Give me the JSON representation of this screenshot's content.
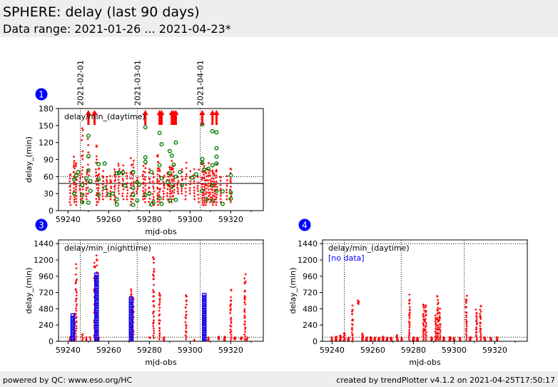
{
  "header": {
    "title": "SPHERE: delay (last 90 days)",
    "subtitle": "Data range: 2021-01-26 ... 2021-04-23*"
  },
  "footer": {
    "left": "powered by QC: www.eso.org/HC",
    "right": "created by trendPlotter v4.1.2 on 2021-04-25T17:50:17"
  },
  "colors": {
    "red": "#ff0000",
    "green": "#008000",
    "blue": "#0000ff",
    "badge": "#0000ff"
  },
  "chart_data": [
    {
      "id": "1",
      "type": "scatter",
      "title": "delay/min_(daytime)",
      "xlabel": "mjd-obs",
      "ylabel": "delay_(min)",
      "xlim": [
        59235.3,
        59336
      ],
      "ylim": [
        0,
        180
      ],
      "xticks": [
        59240,
        59260,
        59280,
        59300,
        59320
      ],
      "yticks": [
        0,
        30,
        60,
        90,
        120,
        150,
        180
      ],
      "date_markers": [
        {
          "x": 59246,
          "label": "2021-02-01"
        },
        {
          "x": 59274,
          "label": "2021-03-01"
        },
        {
          "x": 59305,
          "label": "2021-04-01"
        }
      ],
      "hlines": [
        {
          "y": 60,
          "style": "dotted"
        },
        {
          "y": 48,
          "style": "solid"
        }
      ],
      "overflow_arrows_x": [
        59250,
        59253,
        59278,
        59285,
        59286,
        59291,
        59292,
        59293,
        59306,
        59311,
        59313
      ],
      "red_columns": [
        [
          59241,
          10,
          70,
          12
        ],
        [
          59243,
          15,
          100,
          20
        ],
        [
          59244,
          10,
          90,
          15
        ],
        [
          59246,
          20,
          70,
          10
        ],
        [
          59247,
          15,
          150,
          18
        ],
        [
          59249,
          20,
          70,
          10
        ],
        [
          59250,
          30,
          130,
          10
        ],
        [
          59254,
          10,
          125,
          20
        ],
        [
          59255,
          15,
          80,
          15
        ],
        [
          59257,
          20,
          70,
          10
        ],
        [
          59259,
          25,
          60,
          10
        ],
        [
          59261,
          20,
          65,
          10
        ],
        [
          59263,
          15,
          80,
          15
        ],
        [
          59265,
          30,
          85,
          12
        ],
        [
          59267,
          20,
          85,
          12
        ],
        [
          59269,
          20,
          70,
          10
        ],
        [
          59271,
          10,
          95,
          15
        ],
        [
          59272,
          20,
          90,
          12
        ],
        [
          59274,
          30,
          60,
          8
        ],
        [
          59277,
          20,
          80,
          12
        ],
        [
          59278,
          15,
          85,
          12
        ],
        [
          59280,
          10,
          75,
          12
        ],
        [
          59282,
          10,
          65,
          12
        ],
        [
          59284,
          10,
          110,
          18
        ],
        [
          59285,
          15,
          80,
          15
        ],
        [
          59287,
          20,
          65,
          10
        ],
        [
          59289,
          20,
          75,
          10
        ],
        [
          59290,
          15,
          85,
          15
        ],
        [
          59291,
          15,
          90,
          15
        ],
        [
          59292,
          20,
          85,
          12
        ],
        [
          59294,
          30,
          60,
          8
        ],
        [
          59296,
          30,
          75,
          10
        ],
        [
          59298,
          20,
          85,
          10
        ],
        [
          59300,
          30,
          70,
          8
        ],
        [
          59302,
          20,
          75,
          10
        ],
        [
          59304,
          15,
          75,
          10
        ],
        [
          59306,
          10,
          90,
          18
        ],
        [
          59307,
          10,
          85,
          18
        ],
        [
          59308,
          10,
          80,
          15
        ],
        [
          59309,
          20,
          85,
          12
        ],
        [
          59310,
          15,
          70,
          12
        ],
        [
          59311,
          10,
          75,
          15
        ],
        [
          59312,
          15,
          70,
          12
        ],
        [
          59313,
          10,
          85,
          15
        ],
        [
          59315,
          15,
          65,
          10
        ],
        [
          59318,
          20,
          65,
          8
        ],
        [
          59320,
          15,
          80,
          12
        ]
      ],
      "green_points": [
        [
          59243,
          55
        ],
        [
          59243,
          30
        ],
        [
          59244,
          62
        ],
        [
          59245,
          68
        ],
        [
          59247,
          45
        ],
        [
          59247,
          28
        ],
        [
          59247,
          15
        ],
        [
          59249,
          57
        ],
        [
          59250,
          132
        ],
        [
          59250,
          96
        ],
        [
          59250,
          71
        ],
        [
          59250,
          14
        ],
        [
          59251,
          52
        ],
        [
          59251,
          35
        ],
        [
          59255,
          82
        ],
        [
          59255,
          55
        ],
        [
          59255,
          28
        ],
        [
          59258,
          83
        ],
        [
          59258,
          40
        ],
        [
          59260,
          28
        ],
        [
          59262,
          30
        ],
        [
          59264,
          66
        ],
        [
          59264,
          20
        ],
        [
          59264,
          11
        ],
        [
          59265,
          67
        ],
        [
          59267,
          67
        ],
        [
          59268,
          44
        ],
        [
          59272,
          68
        ],
        [
          59272,
          40
        ],
        [
          59272,
          28
        ],
        [
          59272,
          10
        ],
        [
          59274,
          50
        ],
        [
          59274,
          18
        ],
        [
          59275,
          46
        ],
        [
          59278,
          147
        ],
        [
          59278,
          94
        ],
        [
          59278,
          86
        ],
        [
          59278,
          27
        ],
        [
          59280,
          30
        ],
        [
          59281,
          68
        ],
        [
          59281,
          11
        ],
        [
          59282,
          15
        ],
        [
          59285,
          137
        ],
        [
          59285,
          80
        ],
        [
          59285,
          22
        ],
        [
          59286,
          117
        ],
        [
          59286,
          57
        ],
        [
          59286,
          12
        ],
        [
          59289,
          50
        ],
        [
          59290,
          105
        ],
        [
          59290,
          66
        ],
        [
          59290,
          18
        ],
        [
          59291,
          97
        ],
        [
          59291,
          42
        ],
        [
          59292,
          81
        ],
        [
          59293,
          120
        ],
        [
          59293,
          60
        ],
        [
          59293,
          19
        ],
        [
          59295,
          68
        ],
        [
          59296,
          45
        ],
        [
          59301,
          58
        ],
        [
          59303,
          64
        ],
        [
          59306,
          152
        ],
        [
          59306,
          91
        ],
        [
          59306,
          84
        ],
        [
          59306,
          35
        ],
        [
          59307,
          72
        ],
        [
          59308,
          20
        ],
        [
          59309,
          74
        ],
        [
          59311,
          140
        ],
        [
          59311,
          80
        ],
        [
          59311,
          45
        ],
        [
          59311,
          18
        ],
        [
          59313,
          138
        ],
        [
          59313,
          110
        ],
        [
          59313,
          95
        ],
        [
          59313,
          83
        ],
        [
          59313,
          35
        ],
        [
          59316,
          12
        ],
        [
          59316,
          34
        ],
        [
          59320,
          62
        ],
        [
          59320,
          32
        ],
        [
          59320,
          21
        ]
      ],
      "blue_columns": []
    },
    {
      "id": "3",
      "type": "scatter",
      "title": "delay/min_(nighttime)",
      "xlabel": "mjd-obs",
      "ylabel": "delay_(min)",
      "xlim": [
        59235.3,
        59336
      ],
      "ylim": [
        0,
        1495
      ],
      "xticks": [
        59240,
        59260,
        59280,
        59300,
        59320
      ],
      "yticks": [
        0,
        240,
        480,
        720,
        960,
        1200,
        1440
      ],
      "date_markers": [
        {
          "x": 59246
        },
        {
          "x": 59274
        },
        {
          "x": 59305
        }
      ],
      "hlines": [
        {
          "y": 1440,
          "style": "dotted"
        },
        {
          "y": 60,
          "style": "dotted"
        }
      ],
      "overflow_arrows_x": [],
      "red_columns": [
        [
          59241,
          0,
          80,
          8
        ],
        [
          59243,
          0,
          450,
          25
        ],
        [
          59244,
          0,
          1150,
          30
        ],
        [
          59247,
          0,
          120,
          6
        ],
        [
          59249,
          0,
          60,
          4
        ],
        [
          59251,
          0,
          60,
          3
        ],
        [
          59253,
          0,
          1200,
          35
        ],
        [
          59254,
          0,
          1300,
          40
        ],
        [
          59255,
          0,
          60,
          8
        ],
        [
          59271,
          0,
          830,
          30
        ],
        [
          59272,
          0,
          700,
          20
        ],
        [
          59280,
          50,
          60,
          2
        ],
        [
          59282,
          50,
          1310,
          35
        ],
        [
          59285,
          30,
          810,
          25
        ],
        [
          59287,
          0,
          70,
          6
        ],
        [
          59298,
          30,
          760,
          22
        ],
        [
          59302,
          0,
          20,
          2
        ],
        [
          59307,
          0,
          720,
          25
        ],
        [
          59309,
          0,
          60,
          6
        ],
        [
          59314,
          30,
          70,
          6
        ],
        [
          59317,
          0,
          70,
          8
        ],
        [
          59320,
          0,
          790,
          25
        ],
        [
          59322,
          30,
          60,
          8
        ],
        [
          59325,
          30,
          60,
          8
        ],
        [
          59327,
          0,
          1050,
          30
        ],
        [
          59328,
          0,
          60,
          6
        ]
      ],
      "green_points": [],
      "blue_columns": [
        [
          59242.3,
          0,
          380,
          12
        ],
        [
          59254,
          0,
          980,
          28
        ],
        [
          59271,
          0,
          630,
          18
        ],
        [
          59307,
          0,
          680,
          20
        ]
      ]
    },
    {
      "id": "4",
      "type": "scatter",
      "title": "delay/min_(daytime)",
      "note": "[no data]",
      "xlabel": "mjd-obs",
      "ylabel": "delay_(min)",
      "xlim": [
        59235.3,
        59336
      ],
      "ylim": [
        0,
        1495
      ],
      "xticks": [
        59240,
        59260,
        59280,
        59300,
        59320
      ],
      "yticks": [
        0,
        240,
        480,
        720,
        960,
        1200,
        1440
      ],
      "date_markers": [
        {
          "x": 59246
        },
        {
          "x": 59274
        },
        {
          "x": 59305
        }
      ],
      "hlines": [
        {
          "y": 1440,
          "style": "dotted"
        },
        {
          "y": 60,
          "style": "dotted"
        }
      ],
      "overflow_arrows_x": [],
      "red_columns": [
        [
          59240,
          0,
          70,
          6
        ],
        [
          59242,
          0,
          80,
          10
        ],
        [
          59244,
          0,
          90,
          12
        ],
        [
          59246,
          0,
          140,
          10
        ],
        [
          59248,
          0,
          60,
          8
        ],
        [
          59250,
          0,
          550,
          20
        ],
        [
          59253,
          550,
          610,
          6
        ],
        [
          59255,
          0,
          120,
          12
        ],
        [
          59257,
          0,
          60,
          10
        ],
        [
          59259,
          0,
          70,
          10
        ],
        [
          59261,
          0,
          60,
          10
        ],
        [
          59263,
          0,
          60,
          10
        ],
        [
          59265,
          0,
          70,
          10
        ],
        [
          59267,
          0,
          60,
          10
        ],
        [
          59269,
          0,
          60,
          8
        ],
        [
          59272,
          0,
          90,
          10
        ],
        [
          59274,
          0,
          50,
          6
        ],
        [
          59278,
          0,
          700,
          25
        ],
        [
          59280,
          0,
          60,
          10
        ],
        [
          59282,
          0,
          60,
          10
        ],
        [
          59285,
          0,
          570,
          22
        ],
        [
          59286,
          0,
          610,
          22
        ],
        [
          59289,
          0,
          60,
          8
        ],
        [
          59291,
          0,
          400,
          18
        ],
        [
          59292,
          0,
          700,
          25
        ],
        [
          59293,
          0,
          490,
          18
        ],
        [
          59295,
          0,
          60,
          8
        ],
        [
          59298,
          0,
          70,
          10
        ],
        [
          59300,
          0,
          60,
          8
        ],
        [
          59303,
          0,
          60,
          8
        ],
        [
          59306,
          0,
          710,
          25
        ],
        [
          59308,
          0,
          70,
          10
        ],
        [
          59311,
          0,
          500,
          20
        ],
        [
          59313,
          0,
          560,
          22
        ],
        [
          59315,
          0,
          60,
          8
        ],
        [
          59318,
          0,
          60,
          6
        ],
        [
          59321,
          0,
          70,
          8
        ]
      ],
      "green_points": [],
      "blue_columns": []
    }
  ]
}
